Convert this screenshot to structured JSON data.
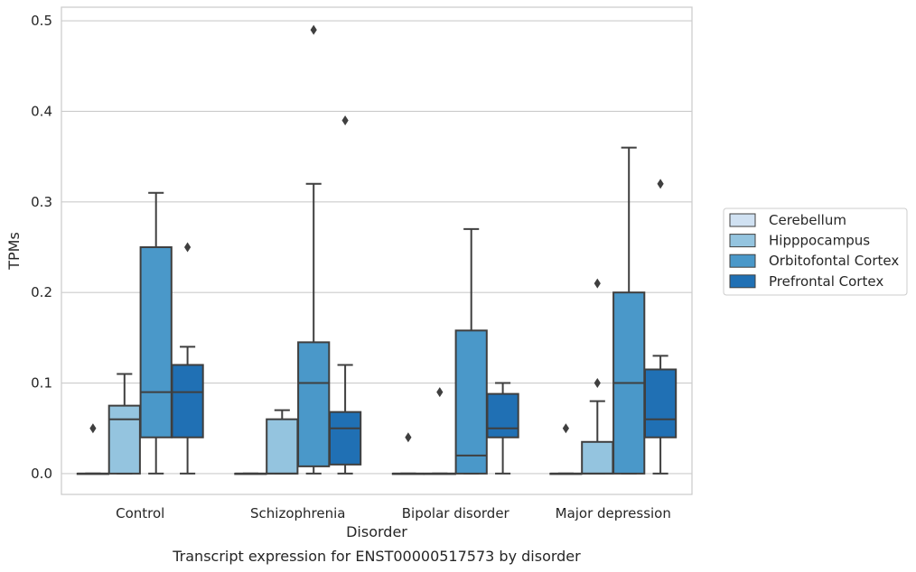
{
  "chart_data": {
    "type": "boxplot",
    "caption": "Transcript expression for ENST00000517573 by disorder",
    "xlabel": "Disorder",
    "ylabel": "TPMs",
    "ylim": [
      -0.023,
      0.515
    ],
    "yticks": [
      0.0,
      0.1,
      0.2,
      0.3,
      0.4,
      0.5
    ],
    "ytick_labels": [
      "0.0",
      "0.1",
      "0.2",
      "0.3",
      "0.4",
      "0.5"
    ],
    "grid": true,
    "legend_position": "right",
    "categories": [
      "Control",
      "Schizophrenia",
      "Bipolar disorder",
      "Major depression"
    ],
    "series": [
      {
        "name": "Cerebellum",
        "color": "#d0e1f2",
        "boxes": [
          {
            "q1": 0.0,
            "median": 0.0,
            "q3": 0.0,
            "whisker_low": 0.0,
            "whisker_high": 0.0,
            "outliers": [
              0.05
            ]
          },
          {
            "q1": 0.0,
            "median": 0.0,
            "q3": 0.0,
            "whisker_low": 0.0,
            "whisker_high": 0.0,
            "outliers": []
          },
          {
            "q1": 0.0,
            "median": 0.0,
            "q3": 0.0,
            "whisker_low": 0.0,
            "whisker_high": 0.0,
            "outliers": [
              0.04
            ]
          },
          {
            "q1": 0.0,
            "median": 0.0,
            "q3": 0.0,
            "whisker_low": 0.0,
            "whisker_high": 0.0,
            "outliers": [
              0.05
            ]
          }
        ]
      },
      {
        "name": "Hipppocampus",
        "color": "#94c4df",
        "boxes": [
          {
            "q1": 0.0,
            "median": 0.06,
            "q3": 0.075,
            "whisker_low": 0.0,
            "whisker_high": 0.11,
            "outliers": []
          },
          {
            "q1": 0.0,
            "median": 0.0,
            "q3": 0.06,
            "whisker_low": 0.0,
            "whisker_high": 0.07,
            "outliers": []
          },
          {
            "q1": 0.0,
            "median": 0.0,
            "q3": 0.0,
            "whisker_low": 0.0,
            "whisker_high": 0.0,
            "outliers": [
              0.09
            ]
          },
          {
            "q1": 0.0,
            "median": 0.0,
            "q3": 0.035,
            "whisker_low": 0.0,
            "whisker_high": 0.08,
            "outliers": [
              0.1,
              0.21
            ]
          }
        ]
      },
      {
        "name": "Orbitofontal Cortex",
        "color": "#4a98c9",
        "boxes": [
          {
            "q1": 0.04,
            "median": 0.09,
            "q3": 0.25,
            "whisker_low": 0.0,
            "whisker_high": 0.31,
            "outliers": []
          },
          {
            "q1": 0.008,
            "median": 0.1,
            "q3": 0.145,
            "whisker_low": 0.0,
            "whisker_high": 0.32,
            "outliers": [
              0.49
            ]
          },
          {
            "q1": 0.0,
            "median": 0.02,
            "q3": 0.158,
            "whisker_low": 0.0,
            "whisker_high": 0.27,
            "outliers": []
          },
          {
            "q1": 0.0,
            "median": 0.1,
            "q3": 0.2,
            "whisker_low": 0.0,
            "whisker_high": 0.36,
            "outliers": []
          }
        ]
      },
      {
        "name": "Prefrontal Cortex",
        "color": "#2070b4",
        "boxes": [
          {
            "q1": 0.04,
            "median": 0.09,
            "q3": 0.12,
            "whisker_low": 0.0,
            "whisker_high": 0.14,
            "outliers": [
              0.25
            ]
          },
          {
            "q1": 0.01,
            "median": 0.05,
            "q3": 0.068,
            "whisker_low": 0.0,
            "whisker_high": 0.12,
            "outliers": [
              0.39
            ]
          },
          {
            "q1": 0.04,
            "median": 0.05,
            "q3": 0.088,
            "whisker_low": 0.0,
            "whisker_high": 0.1,
            "outliers": []
          },
          {
            "q1": 0.04,
            "median": 0.06,
            "q3": 0.115,
            "whisker_low": 0.0,
            "whisker_high": 0.13,
            "outliers": [
              0.32
            ]
          }
        ]
      }
    ]
  }
}
